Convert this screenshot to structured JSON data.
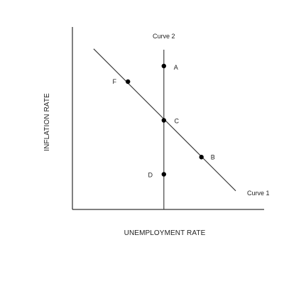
{
  "chart_data": {
    "type": "line",
    "xlabel": "UNEMPLOYMENT RATE",
    "ylabel": "INFLATION RATE",
    "axis_ticks": "none",
    "grid": false,
    "series": [
      {
        "name": "Curve 1",
        "x": [
          0.13,
          1.0
        ],
        "y": [
          0.905,
          0.105
        ]
      },
      {
        "name": "Curve 2",
        "x": [
          0.56,
          0.56
        ],
        "y": [
          0.0,
          0.9
        ]
      }
    ],
    "points": [
      {
        "label": "A",
        "x": 0.56,
        "y": 0.808
      },
      {
        "label": "F",
        "x": 0.34,
        "y": 0.72
      },
      {
        "label": "C",
        "x": 0.56,
        "y": 0.502
      },
      {
        "label": "B",
        "x": 0.79,
        "y": 0.295
      },
      {
        "label": "D",
        "x": 0.56,
        "y": 0.198
      }
    ],
    "xlim": [
      0,
      1
    ],
    "ylim": [
      0,
      1
    ],
    "colors": {
      "line": "#333333",
      "axis": "#000000",
      "point": "#000000"
    }
  }
}
